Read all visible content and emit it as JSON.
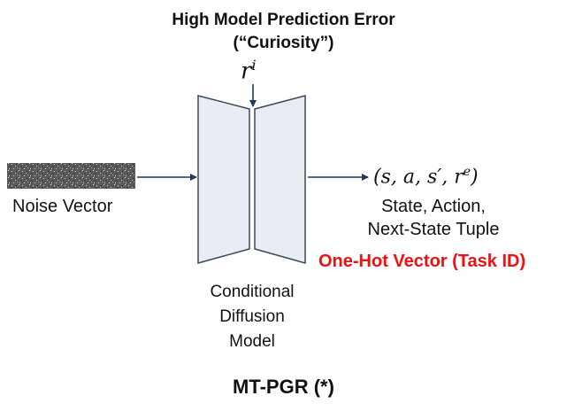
{
  "title": {
    "line1": "High Model Prediction Error",
    "line2": "(“Curiosity”)"
  },
  "reward_label": "r",
  "reward_superscript": "i",
  "noise": {
    "label": "Noise Vector"
  },
  "model": {
    "label_lines": [
      "Conditional",
      "Diffusion",
      "Model"
    ]
  },
  "output": {
    "tuple_math": "(s, a, s′, r",
    "tuple_superscript": "e",
    "tuple_close": ")",
    "line1": "State, Action,",
    "line2": "Next-State Tuple"
  },
  "task_id": {
    "label": "One-Hot Vector (Task ID)",
    "color": "#ee1111"
  },
  "footer": "MT-PGR (*)",
  "colors": {
    "arrow": "#1f3a5a",
    "block_fill": "#e9edf3",
    "block_stroke": "#3d4a5c"
  }
}
